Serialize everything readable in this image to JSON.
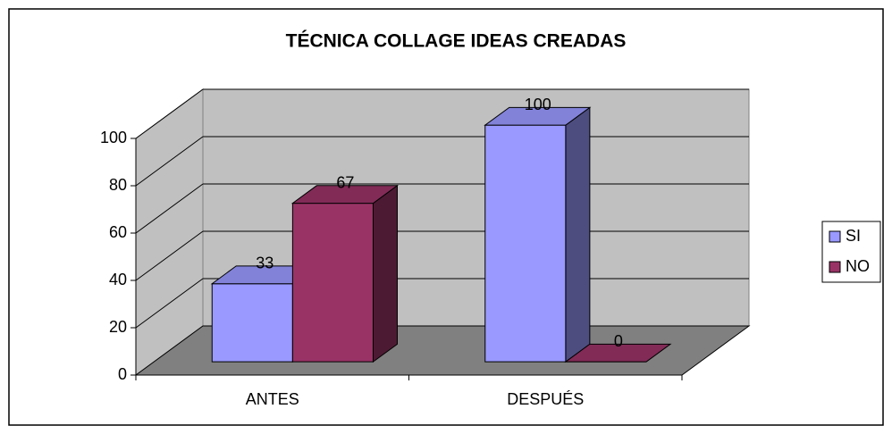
{
  "chart_data": {
    "type": "bar3d",
    "title": "TÉCNICA COLLAGE IDEAS CREADAS",
    "categories": [
      "ANTES",
      "DESPUÉS"
    ],
    "series": [
      {
        "name": "SI",
        "color": "#9999ff",
        "values": [
          33,
          100
        ]
      },
      {
        "name": "NO",
        "color": "#993366",
        "values": [
          67,
          0
        ]
      }
    ],
    "ylim": [
      0,
      100
    ],
    "yticks": [
      0,
      20,
      40,
      60,
      80,
      100
    ],
    "grid": true,
    "legend": "right"
  }
}
